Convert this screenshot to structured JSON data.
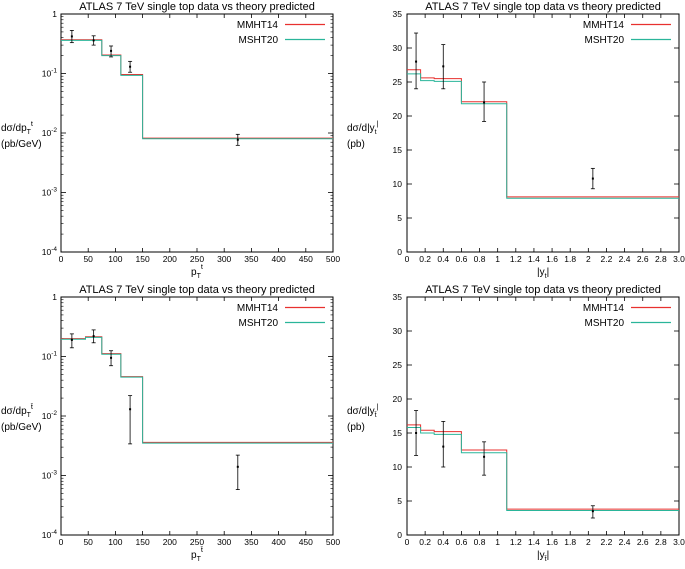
{
  "chart_data": [
    {
      "type": "line",
      "title": "ATLAS 7 TeV single top data vs theory predicted",
      "ylabel": [
        "dσ/dp",
        "T",
        "t",
        "(pb/GeV)"
      ],
      "xlabel": [
        "p",
        "T",
        "t"
      ],
      "xlim": [
        0,
        500
      ],
      "ylim": [
        0.0001,
        1
      ],
      "yscale": "log",
      "xticks": [
        0,
        50,
        100,
        150,
        200,
        250,
        300,
        350,
        400,
        450,
        500
      ],
      "yticks": [
        {
          "v": 0.0001,
          "base": "10",
          "exp": "-4"
        },
        {
          "v": 0.001,
          "base": "10",
          "exp": "-3"
        },
        {
          "v": 0.01,
          "base": "10",
          "exp": "-2"
        },
        {
          "v": 0.1,
          "base": "10",
          "exp": "-1"
        },
        {
          "v": 1,
          "base": "1",
          "exp": ""
        }
      ],
      "legend_position": "top-right",
      "bin_edges": [
        0,
        45,
        75,
        110,
        150,
        500
      ],
      "series": [
        {
          "name": "MMHT14",
          "color": "#e8312f",
          "values": [
            0.37,
            0.37,
            0.205,
            0.096,
            0.0082
          ]
        },
        {
          "name": "MSHT20",
          "color": "#2ab59a",
          "values": [
            0.36,
            0.36,
            0.2,
            0.093,
            0.008
          ]
        }
      ],
      "data_points": [
        {
          "x": 20,
          "y": 0.42,
          "lo": 0.33,
          "hi": 0.53
        },
        {
          "x": 60,
          "y": 0.36,
          "lo": 0.3,
          "hi": 0.43
        },
        {
          "x": 92,
          "y": 0.24,
          "lo": 0.19,
          "hi": 0.29
        },
        {
          "x": 127,
          "y": 0.13,
          "lo": 0.105,
          "hi": 0.16
        },
        {
          "x": 325,
          "y": 0.0077,
          "lo": 0.0062,
          "hi": 0.0095
        }
      ]
    },
    {
      "type": "line",
      "title": "ATLAS 7 TeV single top data vs theory predicted",
      "ylabel": [
        "dσ/d|y",
        "t",
        "|",
        "(pb)"
      ],
      "xlabel": [
        "|y",
        "t",
        "|"
      ],
      "xlim": [
        0,
        3
      ],
      "ylim": [
        0,
        35
      ],
      "yscale": "linear",
      "xticks": [
        0,
        0.2,
        0.4,
        0.6,
        0.8,
        1,
        1.2,
        1.4,
        1.6,
        1.8,
        2,
        2.2,
        2.4,
        2.6,
        2.8,
        3
      ],
      "xtick_labels": [
        "0",
        "0.2",
        "0.4",
        "0.6",
        "0.8",
        "1",
        "1.2",
        "1.4",
        "1.6",
        "1.8",
        "2",
        "2.2",
        "2.4",
        "2.6",
        "2.8",
        "3.0"
      ],
      "yticks": [
        0,
        5,
        10,
        15,
        20,
        25,
        30,
        35
      ],
      "legend_position": "top-right",
      "bin_edges": [
        0,
        0.15,
        0.3,
        0.6,
        1.1,
        3.0
      ],
      "series": [
        {
          "name": "MMHT14",
          "color": "#e8312f",
          "values": [
            26.8,
            25.6,
            25.5,
            22.1,
            8.1
          ]
        },
        {
          "name": "MSHT20",
          "color": "#2ab59a",
          "values": [
            26.2,
            25.2,
            25.1,
            21.8,
            7.9
          ]
        }
      ],
      "data_points": [
        {
          "x": 0.1,
          "y": 28.0,
          "lo": 24.0,
          "hi": 32.2
        },
        {
          "x": 0.4,
          "y": 27.3,
          "lo": 24.0,
          "hi": 30.5
        },
        {
          "x": 0.85,
          "y": 22.0,
          "lo": 19.2,
          "hi": 25.0
        },
        {
          "x": 2.05,
          "y": 10.8,
          "lo": 9.3,
          "hi": 12.3
        }
      ]
    },
    {
      "type": "line",
      "title": "ATLAS 7 TeV single top data vs theory predicted",
      "ylabel": [
        "dσ/dp",
        "T",
        "t̄",
        "(pb/GeV)"
      ],
      "xlabel": [
        "p",
        "T",
        "t̄"
      ],
      "xlim": [
        0,
        500
      ],
      "ylim": [
        0.0001,
        1
      ],
      "yscale": "log",
      "xticks": [
        0,
        50,
        100,
        150,
        200,
        250,
        300,
        350,
        400,
        450,
        500
      ],
      "yticks": [
        {
          "v": 0.0001,
          "base": "10",
          "exp": "-4"
        },
        {
          "v": 0.001,
          "base": "10",
          "exp": "-3"
        },
        {
          "v": 0.01,
          "base": "10",
          "exp": "-2"
        },
        {
          "v": 0.1,
          "base": "10",
          "exp": "-1"
        },
        {
          "v": 1,
          "base": "1",
          "exp": ""
        }
      ],
      "legend_position": "top-right",
      "bin_edges": [
        0,
        45,
        75,
        110,
        150,
        500
      ],
      "series": [
        {
          "name": "MMHT14",
          "color": "#e8312f",
          "values": [
            0.2,
            0.215,
            0.112,
            0.046,
            0.0036
          ]
        },
        {
          "name": "MSHT20",
          "color": "#2ab59a",
          "values": [
            0.195,
            0.21,
            0.109,
            0.045,
            0.0035
          ]
        }
      ],
      "data_points": [
        {
          "x": 20,
          "y": 0.19,
          "lo": 0.14,
          "hi": 0.24
        },
        {
          "x": 60,
          "y": 0.22,
          "lo": 0.17,
          "hi": 0.28
        },
        {
          "x": 92,
          "y": 0.095,
          "lo": 0.07,
          "hi": 0.125
        },
        {
          "x": 127,
          "y": 0.013,
          "lo": 0.0034,
          "hi": 0.022
        },
        {
          "x": 325,
          "y": 0.0014,
          "lo": 0.00058,
          "hi": 0.0022
        }
      ]
    },
    {
      "type": "line",
      "title": "ATLAS 7 TeV single top data vs theory predicted",
      "ylabel": [
        "dσ/d|y",
        "t̄",
        "|",
        "(pb)"
      ],
      "xlabel": [
        "|y",
        "t̄",
        "|"
      ],
      "xlim": [
        0,
        3
      ],
      "ylim": [
        0,
        35
      ],
      "yscale": "linear",
      "xticks": [
        0,
        0.2,
        0.4,
        0.6,
        0.8,
        1,
        1.2,
        1.4,
        1.6,
        1.8,
        2,
        2.2,
        2.4,
        2.6,
        2.8,
        3
      ],
      "xtick_labels": [
        "0",
        "0.2",
        "0.4",
        "0.6",
        "0.8",
        "1",
        "1.2",
        "1.4",
        "1.6",
        "1.8",
        "2",
        "2.2",
        "2.4",
        "2.6",
        "2.8",
        "3.0"
      ],
      "yticks": [
        0,
        5,
        10,
        15,
        20,
        25,
        30,
        35
      ],
      "legend_position": "top-right",
      "bin_edges": [
        0,
        0.15,
        0.3,
        0.6,
        1.1,
        3.0
      ],
      "series": [
        {
          "name": "MMHT14",
          "color": "#e8312f",
          "values": [
            16.2,
            15.4,
            15.2,
            12.5,
            3.8
          ]
        },
        {
          "name": "MSHT20",
          "color": "#2ab59a",
          "values": [
            15.8,
            15.0,
            14.8,
            12.1,
            3.6
          ]
        }
      ],
      "data_points": [
        {
          "x": 0.1,
          "y": 15.0,
          "lo": 11.7,
          "hi": 18.3
        },
        {
          "x": 0.4,
          "y": 13.0,
          "lo": 10.0,
          "hi": 16.7
        },
        {
          "x": 0.85,
          "y": 11.5,
          "lo": 8.8,
          "hi": 13.7
        },
        {
          "x": 2.05,
          "y": 3.5,
          "lo": 2.5,
          "hi": 4.3
        }
      ]
    }
  ]
}
